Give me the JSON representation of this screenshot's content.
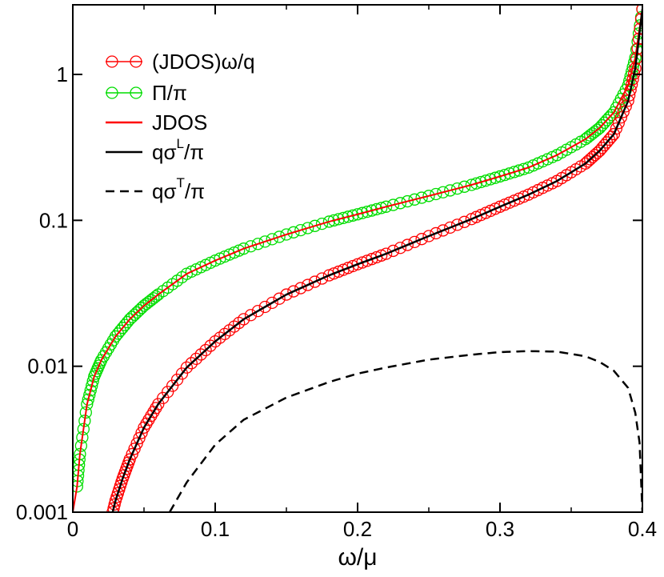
{
  "chart_data": {
    "type": "line",
    "xlabel": "ω/μ",
    "ylabel": "",
    "xlim": [
      0,
      0.4
    ],
    "ylim": [
      0.001,
      3
    ],
    "yscale": "log",
    "grid": false,
    "legend_position": "top-left",
    "x_ticks": [
      "0",
      "0.1",
      "0.2",
      "0.3",
      "0.4"
    ],
    "y_ticks": [
      "0.001",
      "0.01",
      "0.1",
      "1"
    ],
    "x_tick_values": [
      0,
      0.1,
      0.2,
      0.3,
      0.4
    ],
    "y_tick_values": [
      0.001,
      0.01,
      0.1,
      1
    ],
    "series": [
      {
        "name": "(JDOS)ω/q",
        "style": "line+circles",
        "color": "#ff0000",
        "x": [
          0.028,
          0.03,
          0.035,
          0.04,
          0.05,
          0.06,
          0.08,
          0.1,
          0.12,
          0.15,
          0.18,
          0.2,
          0.22,
          0.25,
          0.28,
          0.3,
          0.32,
          0.34,
          0.36,
          0.37,
          0.38,
          0.39,
          0.395,
          0.4
        ],
        "y": [
          0.001,
          0.0012,
          0.0017,
          0.0023,
          0.0038,
          0.0055,
          0.0098,
          0.0148,
          0.021,
          0.031,
          0.042,
          0.05,
          0.059,
          0.078,
          0.102,
          0.124,
          0.15,
          0.186,
          0.245,
          0.3,
          0.39,
          0.66,
          1.1,
          2.8
        ]
      },
      {
        "name": "Π/π",
        "style": "line+circles",
        "color": "#00dd00",
        "x": [
          0.003,
          0.005,
          0.01,
          0.015,
          0.02,
          0.03,
          0.04,
          0.05,
          0.06,
          0.08,
          0.1,
          0.12,
          0.15,
          0.18,
          0.2,
          0.22,
          0.25,
          0.28,
          0.3,
          0.32,
          0.34,
          0.36,
          0.37,
          0.38,
          0.39,
          0.395,
          0.4
        ],
        "y": [
          0.0015,
          0.0025,
          0.0055,
          0.0085,
          0.011,
          0.016,
          0.021,
          0.026,
          0.031,
          0.043,
          0.053,
          0.064,
          0.08,
          0.098,
          0.11,
          0.124,
          0.147,
          0.175,
          0.2,
          0.23,
          0.28,
          0.36,
          0.43,
          0.55,
          0.84,
          1.3,
          2.8
        ]
      },
      {
        "name": "JDOS",
        "style": "line",
        "color": "#ff0000",
        "x": [
          0.0,
          0.003,
          0.005,
          0.01,
          0.015,
          0.02,
          0.03,
          0.04,
          0.05,
          0.06,
          0.08,
          0.1,
          0.12,
          0.15,
          0.18,
          0.2,
          0.22,
          0.25,
          0.28,
          0.3,
          0.32,
          0.34,
          0.36,
          0.37,
          0.38,
          0.39,
          0.395,
          0.4
        ],
        "y": [
          0.001,
          0.0015,
          0.0025,
          0.0055,
          0.0085,
          0.011,
          0.016,
          0.021,
          0.026,
          0.031,
          0.043,
          0.053,
          0.064,
          0.08,
          0.098,
          0.11,
          0.124,
          0.147,
          0.175,
          0.2,
          0.23,
          0.28,
          0.36,
          0.43,
          0.55,
          0.84,
          1.3,
          2.8
        ]
      },
      {
        "name": "qσ^L/π",
        "style": "line",
        "color": "#000000",
        "x": [
          0.028,
          0.03,
          0.035,
          0.04,
          0.05,
          0.06,
          0.08,
          0.1,
          0.12,
          0.15,
          0.18,
          0.2,
          0.22,
          0.25,
          0.28,
          0.3,
          0.32,
          0.34,
          0.36,
          0.37,
          0.38,
          0.39,
          0.395,
          0.4
        ],
        "y": [
          0.001,
          0.0012,
          0.0017,
          0.0023,
          0.0038,
          0.0055,
          0.0098,
          0.0148,
          0.021,
          0.031,
          0.042,
          0.05,
          0.059,
          0.078,
          0.102,
          0.124,
          0.15,
          0.186,
          0.245,
          0.3,
          0.39,
          0.66,
          1.1,
          2.8
        ]
      },
      {
        "name": "qσ^T/π",
        "style": "dashed",
        "color": "#000000",
        "x": [
          0.068,
          0.08,
          0.1,
          0.12,
          0.15,
          0.18,
          0.2,
          0.22,
          0.25,
          0.28,
          0.3,
          0.32,
          0.34,
          0.36,
          0.37,
          0.38,
          0.39,
          0.395,
          0.398,
          0.4
        ],
        "y": [
          0.001,
          0.0016,
          0.0029,
          0.0043,
          0.0061,
          0.0078,
          0.0089,
          0.0098,
          0.0111,
          0.012,
          0.0125,
          0.0127,
          0.0126,
          0.0117,
          0.0107,
          0.0093,
          0.0071,
          0.0048,
          0.003,
          0.001
        ]
      }
    ],
    "legend": [
      {
        "label": "(JDOS)ω/q",
        "color": "#ff0000",
        "style": "line+circles"
      },
      {
        "label": "Π/π",
        "color": "#00dd00",
        "style": "line+circles"
      },
      {
        "label": "JDOS",
        "color": "#ff0000",
        "style": "line"
      },
      {
        "label_main": "qσ",
        "label_sup": "L",
        "label_tail": "/π",
        "color": "#000000",
        "style": "line"
      },
      {
        "label_main": "qσ",
        "label_sup": "T",
        "label_tail": "/π",
        "color": "#000000",
        "style": "dashed"
      }
    ]
  }
}
